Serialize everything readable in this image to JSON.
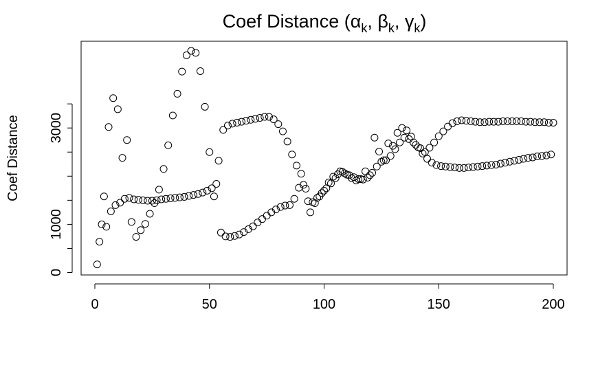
{
  "chart_data": {
    "type": "scatter",
    "title": "Coef Distance (α",
    "title_parts": {
      "sub_k": "k",
      "sep_beta": ", β",
      "sep_gamma": ", γ",
      "close": ")"
    },
    "xlabel": "",
    "ylabel": "Coef Distance",
    "xlim": [
      -6,
      206
    ],
    "ylim": [
      -50,
      4800
    ],
    "x_ticks": [
      0,
      50,
      100,
      150,
      200
    ],
    "x_tick_labels": [
      "0",
      "50",
      "100",
      "150",
      "200"
    ],
    "y_ticks": [
      0,
      1000,
      3000
    ],
    "y_tick_labels": [
      "0",
      "1000",
      "3000"
    ],
    "grid": false,
    "legend": "none",
    "marker": "open-circle",
    "point_color": "#000000",
    "series": [
      {
        "values": [
          [
            1,
            170
          ],
          [
            3,
            1000
          ],
          [
            5,
            950
          ],
          [
            7,
            1270
          ],
          [
            9,
            1400
          ],
          [
            11,
            1450
          ],
          [
            13,
            1530
          ],
          [
            15,
            1550
          ],
          [
            17,
            1520
          ],
          [
            19,
            1510
          ],
          [
            21,
            1500
          ],
          [
            23,
            1490
          ],
          [
            25,
            1490
          ],
          [
            27,
            1500
          ],
          [
            29,
            1520
          ],
          [
            31,
            1530
          ],
          [
            33,
            1540
          ],
          [
            35,
            1550
          ],
          [
            37,
            1560
          ],
          [
            39,
            1570
          ],
          [
            41,
            1590
          ],
          [
            43,
            1610
          ],
          [
            45,
            1630
          ],
          [
            47,
            1660
          ],
          [
            49,
            1700
          ],
          [
            51,
            1750
          ],
          [
            53,
            1840
          ],
          [
            55,
            830
          ],
          [
            57,
            750
          ],
          [
            59,
            740
          ],
          [
            61,
            760
          ],
          [
            63,
            790
          ],
          [
            65,
            840
          ],
          [
            67,
            900
          ],
          [
            69,
            960
          ],
          [
            71,
            1040
          ],
          [
            73,
            1110
          ],
          [
            75,
            1180
          ],
          [
            77,
            1250
          ],
          [
            79,
            1310
          ],
          [
            81,
            1360
          ],
          [
            83,
            1390
          ],
          [
            85,
            1400
          ],
          [
            87,
            1530
          ],
          [
            89,
            1760
          ],
          [
            91,
            1820
          ],
          [
            93,
            1480
          ],
          [
            95,
            1460
          ],
          [
            97,
            1550
          ],
          [
            99,
            1650
          ],
          [
            101,
            1750
          ],
          [
            103,
            1850
          ],
          [
            105,
            1960
          ],
          [
            107,
            2100
          ],
          [
            109,
            2060
          ],
          [
            111,
            2020
          ],
          [
            113,
            1980
          ],
          [
            115,
            1940
          ],
          [
            117,
            1930
          ],
          [
            119,
            1970
          ],
          [
            121,
            2070
          ],
          [
            123,
            2200
          ],
          [
            125,
            2300
          ],
          [
            127,
            2330
          ],
          [
            129,
            2420
          ],
          [
            131,
            2560
          ],
          [
            133,
            2700
          ],
          [
            135,
            2800
          ],
          [
            137,
            2770
          ],
          [
            139,
            2700
          ],
          [
            141,
            2600
          ],
          [
            143,
            2470
          ],
          [
            145,
            2360
          ],
          [
            147,
            2280
          ],
          [
            149,
            2230
          ],
          [
            151,
            2210
          ],
          [
            153,
            2200
          ],
          [
            155,
            2190
          ],
          [
            157,
            2180
          ],
          [
            159,
            2170
          ],
          [
            161,
            2170
          ],
          [
            163,
            2180
          ],
          [
            165,
            2190
          ],
          [
            167,
            2200
          ],
          [
            169,
            2210
          ],
          [
            171,
            2220
          ],
          [
            173,
            2230
          ],
          [
            175,
            2240
          ],
          [
            177,
            2260
          ],
          [
            179,
            2280
          ],
          [
            181,
            2300
          ],
          [
            183,
            2320
          ],
          [
            185,
            2340
          ],
          [
            187,
            2360
          ],
          [
            189,
            2380
          ],
          [
            191,
            2390
          ],
          [
            193,
            2410
          ],
          [
            195,
            2420
          ],
          [
            197,
            2430
          ],
          [
            199,
            2450
          ]
        ]
      },
      {
        "values": [
          [
            2,
            640
          ],
          [
            4,
            1580
          ],
          [
            6,
            3020
          ],
          [
            8,
            3620
          ],
          [
            10,
            3390
          ],
          [
            12,
            2380
          ],
          [
            14,
            2750
          ],
          [
            16,
            1050
          ],
          [
            18,
            740
          ],
          [
            20,
            880
          ],
          [
            22,
            1010
          ],
          [
            24,
            1220
          ],
          [
            26,
            1440
          ],
          [
            28,
            1720
          ],
          [
            30,
            2150
          ],
          [
            32,
            2640
          ],
          [
            34,
            3260
          ],
          [
            36,
            3710
          ],
          [
            38,
            4170
          ],
          [
            40,
            4510
          ],
          [
            42,
            4600
          ],
          [
            44,
            4560
          ],
          [
            46,
            4180
          ],
          [
            48,
            3440
          ],
          [
            50,
            2500
          ],
          [
            52,
            1580
          ],
          [
            54,
            2320
          ],
          [
            56,
            2960
          ],
          [
            58,
            3050
          ],
          [
            60,
            3090
          ],
          [
            62,
            3110
          ],
          [
            64,
            3130
          ],
          [
            66,
            3150
          ],
          [
            68,
            3170
          ],
          [
            70,
            3190
          ],
          [
            72,
            3210
          ],
          [
            74,
            3230
          ],
          [
            76,
            3230
          ],
          [
            78,
            3180
          ],
          [
            80,
            3080
          ],
          [
            82,
            2930
          ],
          [
            84,
            2720
          ],
          [
            86,
            2450
          ],
          [
            88,
            2220
          ],
          [
            90,
            2050
          ],
          [
            92,
            1740
          ],
          [
            94,
            1250
          ],
          [
            96,
            1440
          ],
          [
            98,
            1580
          ],
          [
            100,
            1700
          ],
          [
            102,
            1870
          ],
          [
            104,
            1990
          ],
          [
            106,
            2040
          ],
          [
            108,
            2090
          ],
          [
            110,
            2030
          ],
          [
            112,
            1960
          ],
          [
            114,
            1910
          ],
          [
            116,
            1940
          ],
          [
            118,
            2100
          ],
          [
            120,
            2020
          ],
          [
            122,
            2800
          ],
          [
            124,
            2510
          ],
          [
            126,
            2330
          ],
          [
            128,
            2680
          ],
          [
            130,
            2630
          ],
          [
            132,
            2900
          ],
          [
            134,
            3000
          ],
          [
            136,
            2950
          ],
          [
            138,
            2820
          ],
          [
            140,
            2650
          ],
          [
            142,
            2580
          ],
          [
            144,
            2500
          ],
          [
            146,
            2590
          ],
          [
            148,
            2700
          ],
          [
            150,
            2830
          ],
          [
            152,
            2930
          ],
          [
            154,
            3030
          ],
          [
            156,
            3100
          ],
          [
            158,
            3140
          ],
          [
            160,
            3160
          ],
          [
            162,
            3150
          ],
          [
            164,
            3140
          ],
          [
            166,
            3130
          ],
          [
            168,
            3120
          ],
          [
            170,
            3120
          ],
          [
            172,
            3130
          ],
          [
            174,
            3130
          ],
          [
            176,
            3130
          ],
          [
            178,
            3140
          ],
          [
            180,
            3140
          ],
          [
            182,
            3140
          ],
          [
            184,
            3140
          ],
          [
            186,
            3140
          ],
          [
            188,
            3130
          ],
          [
            190,
            3130
          ],
          [
            192,
            3120
          ],
          [
            194,
            3120
          ],
          [
            196,
            3120
          ],
          [
            198,
            3110
          ],
          [
            200,
            3110
          ]
        ]
      }
    ]
  }
}
